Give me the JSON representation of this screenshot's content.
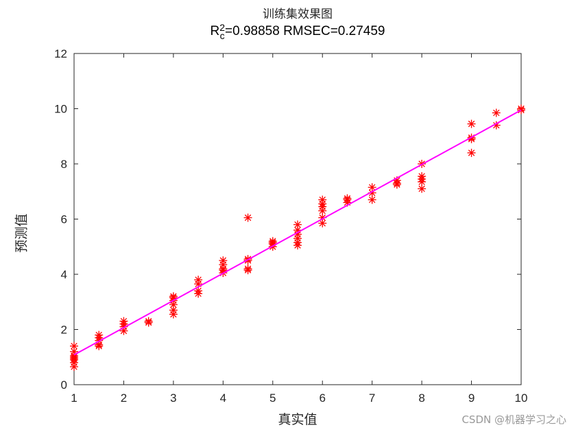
{
  "chart_data": {
    "type": "scatter",
    "title": "训练集效果图",
    "subtitle": "R_c^2=0.98858  RMSEC=0.27459",
    "subtitle_parts": {
      "r": "R",
      "sup": "2",
      "sub": "c",
      "rest": "=0.98858  RMSEC=0.27459"
    },
    "xlabel": "真实值",
    "ylabel": "预测值",
    "xlim": [
      1,
      10
    ],
    "ylim": [
      0,
      12
    ],
    "xticks": [
      1,
      2,
      3,
      4,
      5,
      6,
      7,
      8,
      9,
      10
    ],
    "yticks": [
      0,
      2,
      4,
      6,
      8,
      10,
      12
    ],
    "grid": false,
    "marker": "*",
    "marker_color": "#ff0000",
    "fit_line": {
      "color": "#ff00ff",
      "x": [
        1,
        10
      ],
      "y": [
        1.08,
        9.95
      ]
    },
    "series": [
      {
        "name": "训练集",
        "points": [
          [
            1,
            0.65
          ],
          [
            1,
            0.8
          ],
          [
            1,
            0.9
          ],
          [
            1,
            0.95
          ],
          [
            1,
            1.0
          ],
          [
            1,
            1.05
          ],
          [
            1,
            1.2
          ],
          [
            1,
            1.4
          ],
          [
            1.5,
            1.4
          ],
          [
            1.5,
            1.45
          ],
          [
            1.5,
            1.6
          ],
          [
            1.5,
            1.7
          ],
          [
            1.5,
            1.8
          ],
          [
            2,
            1.95
          ],
          [
            2,
            2.1
          ],
          [
            2,
            2.2
          ],
          [
            2,
            2.3
          ],
          [
            2.5,
            2.25
          ],
          [
            2.5,
            2.3
          ],
          [
            3,
            2.55
          ],
          [
            3,
            2.7
          ],
          [
            3,
            2.9
          ],
          [
            3,
            3.05
          ],
          [
            3,
            3.15
          ],
          [
            3,
            3.2
          ],
          [
            3.5,
            3.3
          ],
          [
            3.5,
            3.4
          ],
          [
            3.5,
            3.65
          ],
          [
            3.5,
            3.8
          ],
          [
            4,
            4.05
          ],
          [
            4,
            4.15
          ],
          [
            4,
            4.2
          ],
          [
            4,
            4.35
          ],
          [
            4,
            4.5
          ],
          [
            4.5,
            4.15
          ],
          [
            4.5,
            4.2
          ],
          [
            4.5,
            4.5
          ],
          [
            4.5,
            4.55
          ],
          [
            4.5,
            6.05
          ],
          [
            5,
            5.0
          ],
          [
            5,
            5.1
          ],
          [
            5,
            5.15
          ],
          [
            5,
            5.2
          ],
          [
            5.5,
            5.05
          ],
          [
            5.5,
            5.15
          ],
          [
            5.5,
            5.3
          ],
          [
            5.5,
            5.45
          ],
          [
            5.5,
            5.6
          ],
          [
            5.5,
            5.8
          ],
          [
            6,
            5.85
          ],
          [
            6,
            6.05
          ],
          [
            6,
            6.3
          ],
          [
            6,
            6.45
          ],
          [
            6,
            6.55
          ],
          [
            6,
            6.7
          ],
          [
            6.5,
            6.6
          ],
          [
            6.5,
            6.7
          ],
          [
            6.5,
            6.75
          ],
          [
            7,
            6.7
          ],
          [
            7,
            6.95
          ],
          [
            7,
            7.15
          ],
          [
            7.5,
            7.25
          ],
          [
            7.5,
            7.3
          ],
          [
            7.5,
            7.4
          ],
          [
            8,
            7.1
          ],
          [
            8,
            7.35
          ],
          [
            8,
            7.45
          ],
          [
            8,
            7.55
          ],
          [
            8,
            8.0
          ],
          [
            9,
            8.4
          ],
          [
            9,
            8.9
          ],
          [
            9,
            8.95
          ],
          [
            9,
            9.45
          ],
          [
            9.5,
            9.4
          ],
          [
            9.5,
            9.85
          ],
          [
            10,
            9.95
          ],
          [
            10,
            10.0
          ]
        ]
      }
    ]
  },
  "watermark": "CSDN @机器学习之心"
}
